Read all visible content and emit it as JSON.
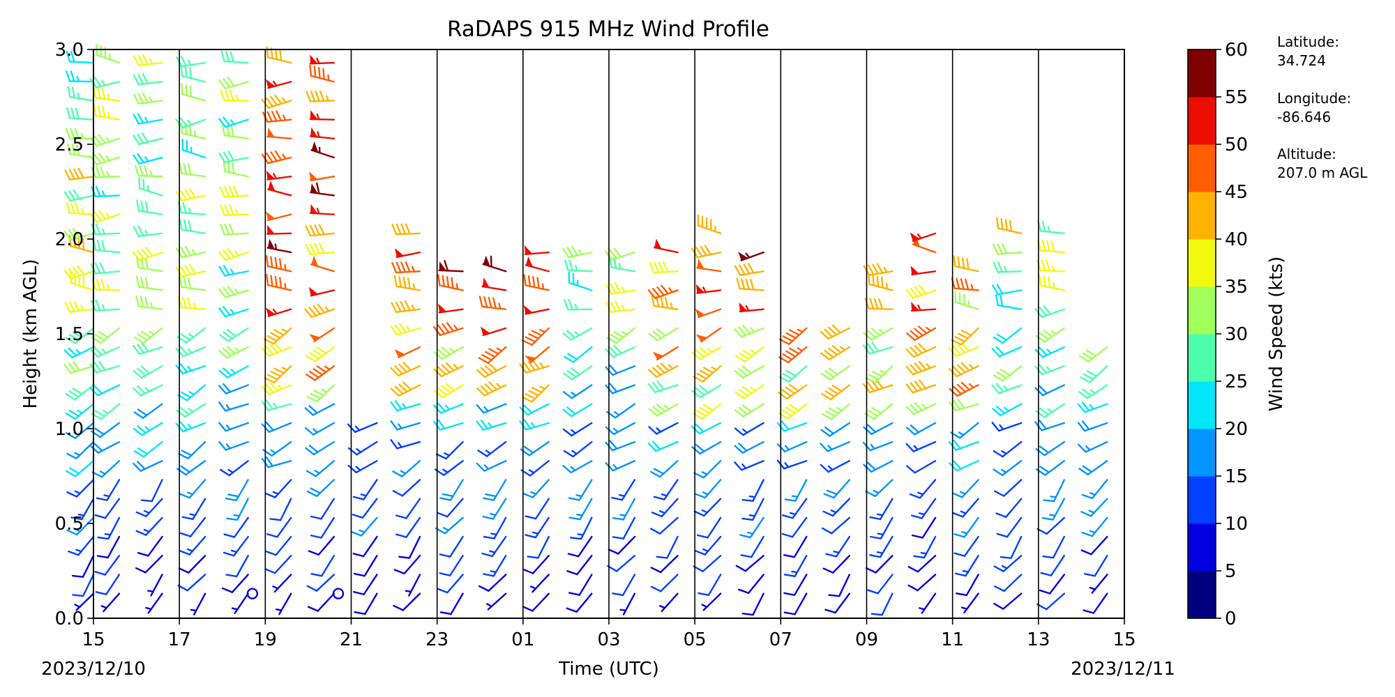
{
  "chart_data": {
    "type": "wind_barbs",
    "title": "RaDAPS 915 MHz Wind Profile",
    "xlabel": "Time (UTC)",
    "ylabel": "Height (km AGL)",
    "x_ticks": [
      "15",
      "17",
      "19",
      "21",
      "23",
      "01",
      "03",
      "05",
      "07",
      "09",
      "11",
      "13",
      "15"
    ],
    "start_date": "2023/12/10",
    "end_date": "2023/12/11",
    "xlim_hours": [
      0,
      24
    ],
    "ylim": [
      0,
      3.0
    ],
    "y_ticks": [
      "0.0",
      "0.5",
      "1.0",
      "1.5",
      "2.0",
      "2.5",
      "3.0"
    ],
    "vertical_lines_every_hours": 2,
    "colorbar": {
      "label": "Wind Speed (kts)",
      "ticks": [
        "0",
        "5",
        "10",
        "15",
        "20",
        "25",
        "30",
        "35",
        "40",
        "45",
        "50",
        "55",
        "60"
      ],
      "colors": [
        "#00007f",
        "#0000e0",
        "#0040ff",
        "#0094ff",
        "#00e5f7",
        "#4dffad",
        "#a0ff58",
        "#f2f911",
        "#ffb300",
        "#ff5e00",
        "#ec0e00",
        "#7f0000"
      ]
    },
    "info": {
      "lat_label": "Latitude:",
      "lat_value": "34.724",
      "lon_label": "Longitude:",
      "lon_value": "-86.646",
      "alt_label": "Altitude:",
      "alt_value": "207.0 m AGL"
    },
    "profile_times_hours": [
      0.0,
      0.6,
      1.6,
      2.6,
      3.6,
      4.6,
      5.6,
      6.6,
      7.6,
      8.6,
      9.6,
      10.6,
      11.6,
      12.6,
      13.6,
      14.6,
      15.6,
      16.6,
      17.6,
      18.6,
      19.6,
      20.6,
      21.6,
      22.6,
      23.6
    ],
    "profile_top_km": [
      3.0,
      3.0,
      3.0,
      3.0,
      3.0,
      3.0,
      3.0,
      1.1,
      2.1,
      1.9,
      1.9,
      1.95,
      1.95,
      1.95,
      2.0,
      2.1,
      2.0,
      1.6,
      1.6,
      1.9,
      2.1,
      1.9,
      2.1,
      2.1,
      1.45
    ],
    "level_spacing_km": 0.1,
    "lowest_level_km": 0.13,
    "calm_markers": [
      {
        "time_hours": 3.7,
        "height_km": 0.13
      },
      {
        "time_hours": 5.7,
        "height_km": 0.13
      }
    ],
    "speed_profile_kts": [
      {
        "height_km": 0.13,
        "speed": 8
      },
      {
        "height_km": 0.5,
        "speed": 12
      },
      {
        "height_km": 1.0,
        "speed": 18
      },
      {
        "height_km": 1.5,
        "speed": 27
      },
      {
        "height_km": 2.0,
        "speed": 33
      },
      {
        "height_km": 3.0,
        "speed": 28
      }
    ]
  }
}
